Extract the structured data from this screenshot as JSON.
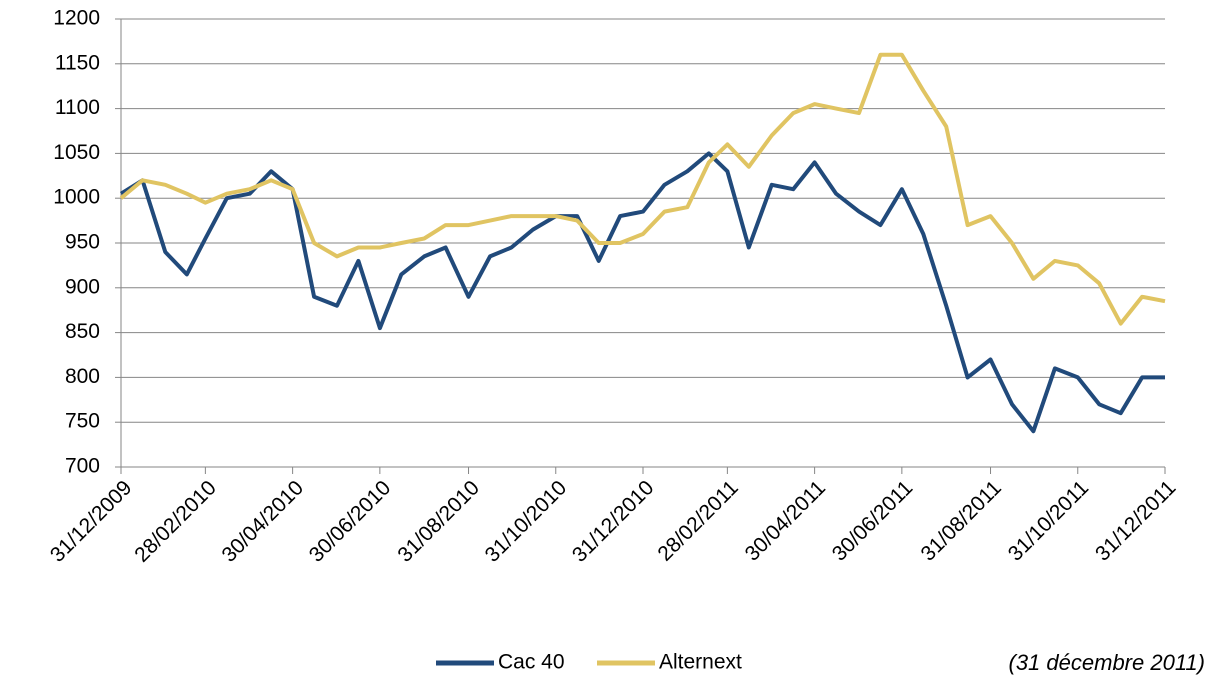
{
  "chart_data": {
    "type": "line",
    "x": [
      "31/12/2009",
      "15/01/2010",
      "31/01/2010",
      "15/02/2010",
      "28/02/2010",
      "15/03/2010",
      "31/03/2010",
      "15/04/2010",
      "30/04/2010",
      "15/05/2010",
      "31/05/2010",
      "15/06/2010",
      "30/06/2010",
      "15/07/2010",
      "31/07/2010",
      "15/08/2010",
      "31/08/2010",
      "15/09/2010",
      "30/09/2010",
      "15/10/2010",
      "31/10/2010",
      "15/11/2010",
      "30/11/2010",
      "15/12/2010",
      "31/12/2010",
      "15/01/2011",
      "31/01/2011",
      "15/02/2011",
      "28/02/2011",
      "15/03/2011",
      "31/03/2011",
      "15/04/2011",
      "30/04/2011",
      "15/05/2011",
      "31/05/2011",
      "15/06/2011",
      "30/06/2011",
      "15/07/2011",
      "31/07/2011",
      "15/08/2011",
      "31/08/2011",
      "15/09/2011",
      "30/09/2011",
      "15/10/2011",
      "31/10/2011",
      "15/11/2011",
      "30/11/2011",
      "15/12/2011",
      "31/12/2011"
    ],
    "series": [
      {
        "name": "Cac 40",
        "color": "#214a7b",
        "values": [
          1005,
          1020,
          940,
          915,
          955,
          1000,
          1005,
          1030,
          1010,
          890,
          880,
          930,
          855,
          915,
          935,
          945,
          890,
          935,
          945,
          965,
          980,
          980,
          930,
          980,
          985,
          1015,
          1030,
          1050,
          1030,
          945,
          1015,
          1010,
          1040,
          1005,
          985,
          970,
          1010,
          960,
          880,
          800,
          820,
          770,
          740,
          810,
          800,
          770,
          760,
          800,
          800
        ]
      },
      {
        "name": "Alternext",
        "color": "#e0c462",
        "values": [
          1000,
          1020,
          1015,
          1005,
          995,
          1005,
          1010,
          1020,
          1010,
          950,
          935,
          945,
          945,
          950,
          955,
          970,
          970,
          975,
          980,
          980,
          980,
          975,
          950,
          950,
          960,
          985,
          990,
          1040,
          1060,
          1035,
          1070,
          1095,
          1105,
          1100,
          1095,
          1160,
          1160,
          1120,
          1080,
          970,
          980,
          950,
          910,
          930,
          925,
          905,
          860,
          890,
          885
        ]
      }
    ],
    "xlim": [
      "31/12/2009",
      "31/12/2011"
    ],
    "xticks": [
      "31/12/2009",
      "28/02/2010",
      "30/04/2010",
      "30/06/2010",
      "31/08/2010",
      "31/10/2010",
      "31/12/2010",
      "28/02/2011",
      "30/04/2011",
      "30/06/2011",
      "31/08/2011",
      "31/10/2011",
      "31/12/2011"
    ],
    "ylim": [
      700,
      1200
    ],
    "yticks": [
      700,
      750,
      800,
      850,
      900,
      950,
      1000,
      1050,
      1100,
      1150,
      1200
    ],
    "grid": true,
    "legend": "bottom",
    "annotation": "(31 décembre 2011)"
  }
}
